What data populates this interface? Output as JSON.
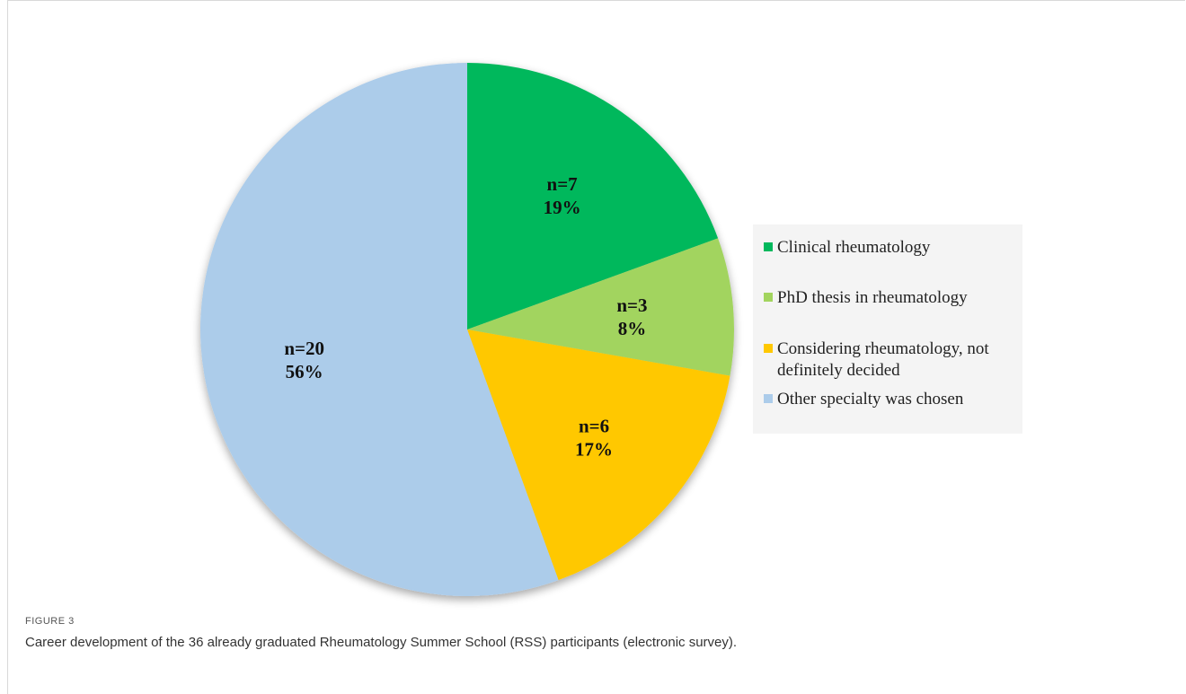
{
  "figure": {
    "label": "FIGURE 3",
    "caption": "Career development of the 36 already graduated Rheumatology Summer School (RSS) participants (electronic survey)."
  },
  "chart_data": {
    "type": "pie",
    "title": "",
    "categories": [
      "Clinical rheumatology",
      "PhD thesis in rheumatology",
      "Considering rheumatology, not definitely decided",
      "Other specialty was chosen"
    ],
    "legend_lines": [
      "Clinical rheumatology",
      "PhD thesis in rheumatology",
      "Considering rheumatology, not\ndefinitely decided",
      "Other specialty was chosen"
    ],
    "values": [
      7,
      3,
      6,
      20
    ],
    "count_labels": [
      "n=7",
      "n=3",
      "n=6",
      "n=20"
    ],
    "percent_labels": [
      "19%",
      "8%",
      "17%",
      "56%"
    ],
    "colors": [
      "#00b85c",
      "#a2d45e",
      "#ffc800",
      "#acccea"
    ],
    "start_angle": "12 o'clock",
    "direction": "clockwise",
    "legend_position": "right"
  }
}
